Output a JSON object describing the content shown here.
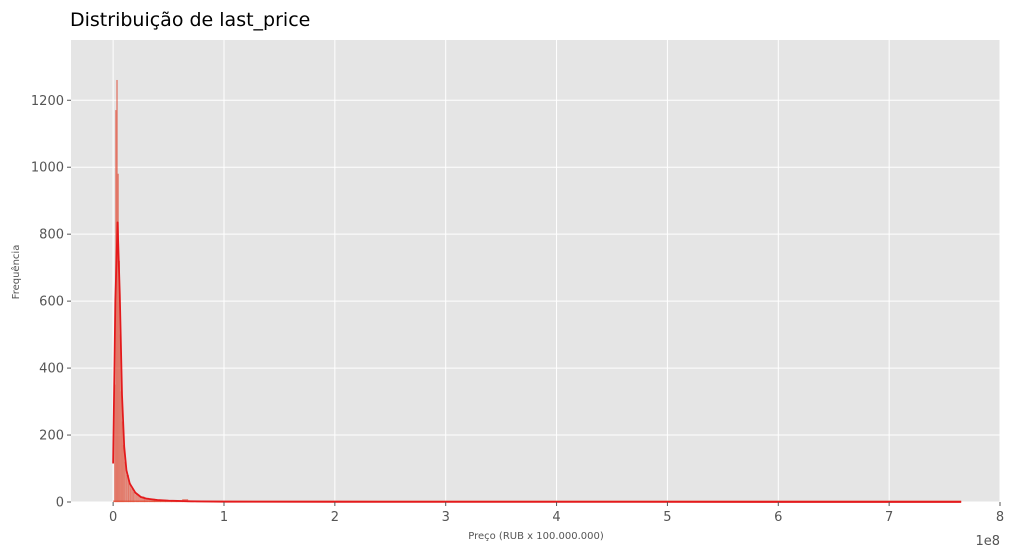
{
  "chart_data": {
    "type": "bar",
    "title": "Distribuição de last_price",
    "xlabel": "Preço (RUB x 100.000.000)",
    "ylabel": "Frequência",
    "x_offset_label": "1e8",
    "xlim": [
      -0.38,
      8.0
    ],
    "ylim": [
      0,
      1380
    ],
    "xticks": [
      0,
      1,
      2,
      3,
      4,
      5,
      6,
      7,
      8
    ],
    "yticks": [
      0,
      200,
      400,
      600,
      800,
      1000,
      1200
    ],
    "grid": true,
    "legend": "none",
    "colors": {
      "plot_background": "#e5e5e5",
      "grid": "#ffffff",
      "bars": "#e24a33",
      "kde_line": "#e41a1c"
    },
    "histogram": {
      "bin_centers": [
        0.0,
        0.015,
        0.025,
        0.035,
        0.045,
        0.055,
        0.065,
        0.075,
        0.085,
        0.095,
        0.11,
        0.13,
        0.15,
        0.17,
        0.19,
        0.22,
        0.26,
        0.3,
        0.35,
        0.4,
        0.45,
        0.5,
        0.55,
        0.6,
        0.65,
        0.7,
        0.8,
        1.0,
        1.5,
        2.0,
        3.0,
        4.0,
        5.0,
        6.0,
        7.0,
        7.63
      ],
      "counts": [
        0,
        350,
        1170,
        1260,
        980,
        720,
        500,
        330,
        240,
        170,
        120,
        80,
        55,
        40,
        30,
        22,
        16,
        12,
        9,
        7,
        6,
        5,
        4,
        3,
        8,
        3,
        2,
        2,
        1,
        1,
        1,
        1,
        1,
        1,
        1,
        1
      ]
    },
    "kde": {
      "x": [
        0.0,
        0.02,
        0.04,
        0.06,
        0.08,
        0.1,
        0.12,
        0.15,
        0.2,
        0.25,
        0.3,
        0.4,
        0.5,
        0.7,
        1.0,
        2.0,
        4.0,
        6.0,
        7.65
      ],
      "y": [
        115,
        600,
        835,
        620,
        320,
        165,
        95,
        55,
        28,
        15,
        10,
        6,
        4,
        2,
        1,
        0.5,
        0.3,
        0.2,
        0.2
      ]
    }
  }
}
